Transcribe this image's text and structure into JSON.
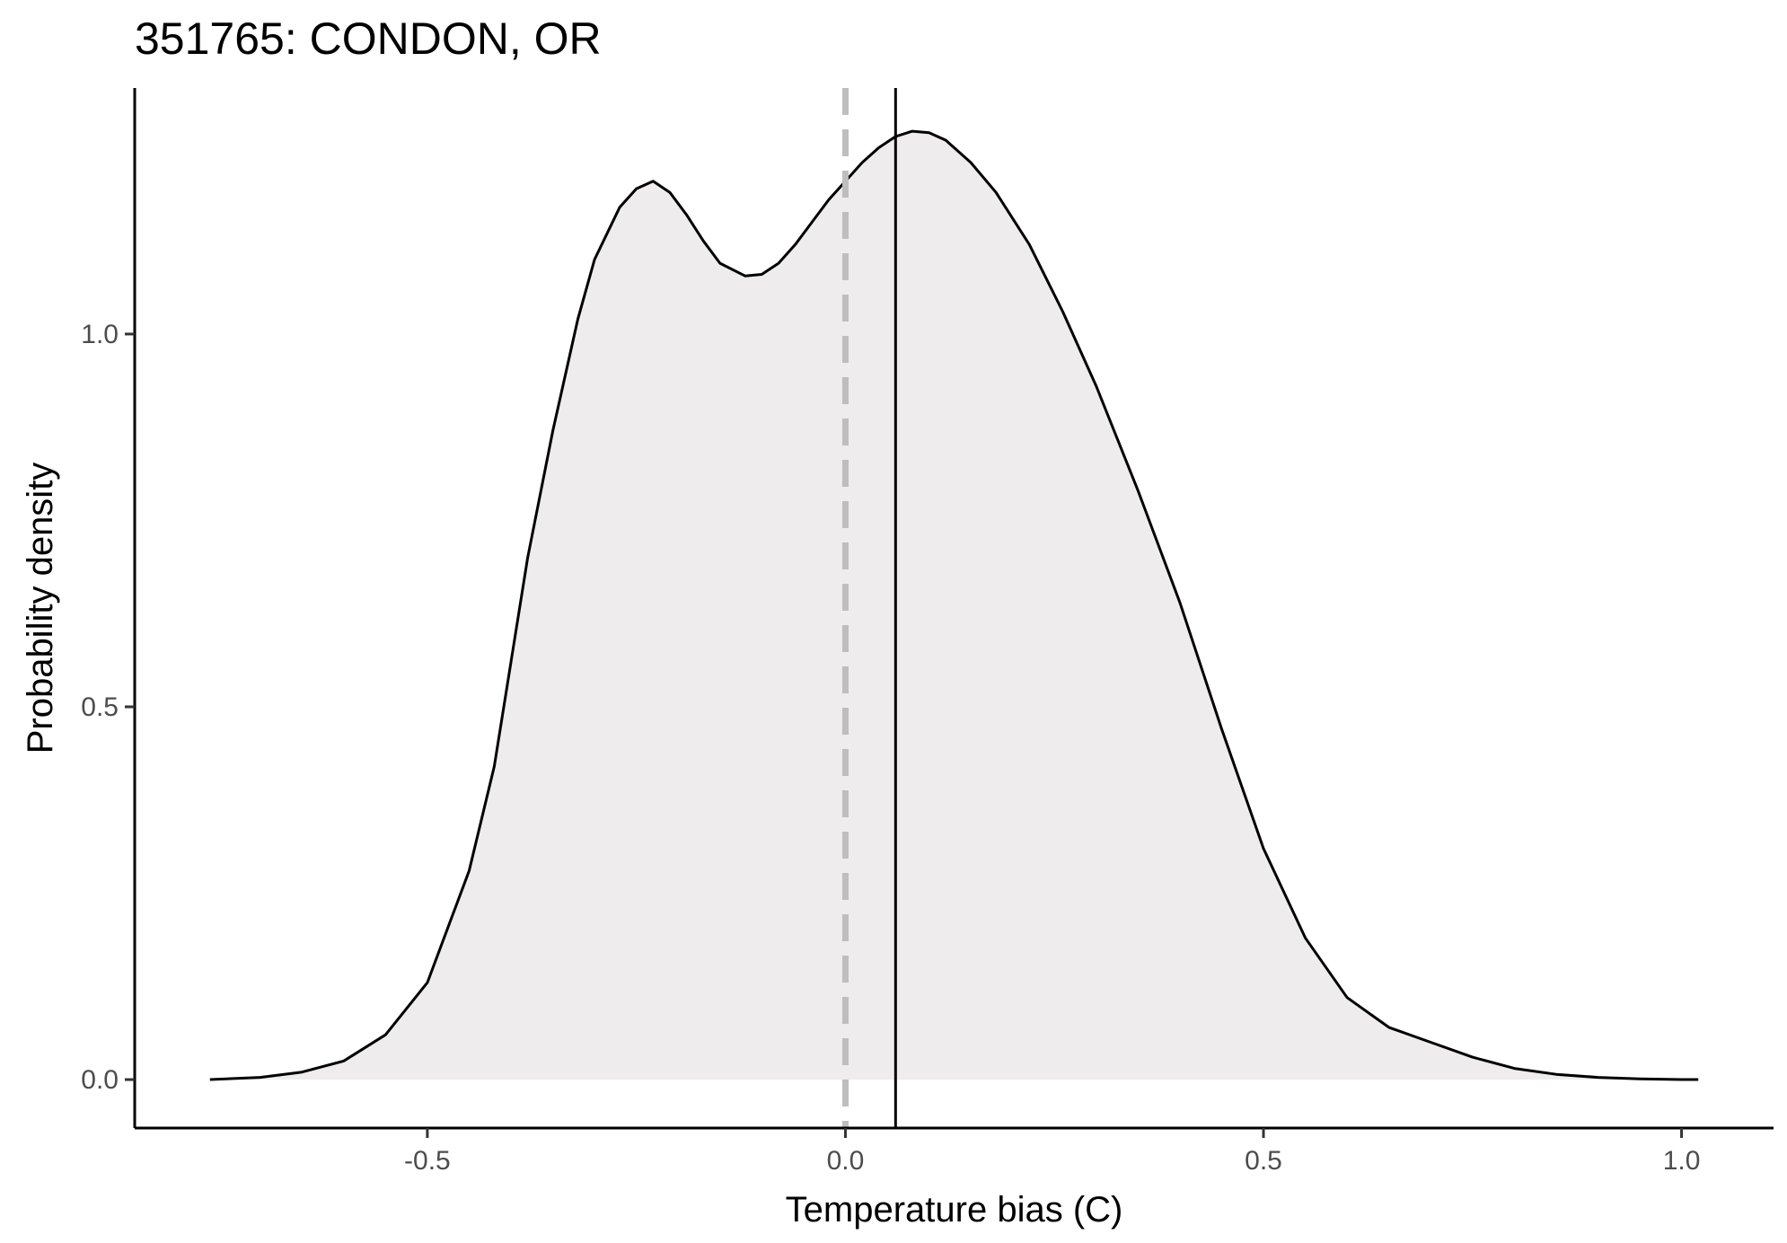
{
  "chart_data": {
    "type": "area",
    "title": "351765: CONDON, OR",
    "xlabel": "Temperature bias (C)",
    "ylabel": "Probability density",
    "xlim": [
      -0.85,
      1.11
    ],
    "ylim": [
      -0.065,
      1.33
    ],
    "x_ticks": [
      -0.5,
      0.0,
      0.5,
      1.0
    ],
    "x_tick_labels": [
      "-0.5",
      "0.0",
      "0.5",
      "1.0"
    ],
    "y_ticks": [
      0.0,
      0.5,
      1.0
    ],
    "y_tick_labels": [
      "0.0",
      "0.5",
      "1.0"
    ],
    "grid": false,
    "fill_color": "#eeecec",
    "line_color": "#000000",
    "density": {
      "x": [
        -0.76,
        -0.7,
        -0.65,
        -0.6,
        -0.55,
        -0.5,
        -0.45,
        -0.42,
        -0.4,
        -0.38,
        -0.35,
        -0.32,
        -0.3,
        -0.27,
        -0.25,
        -0.23,
        -0.21,
        -0.19,
        -0.17,
        -0.15,
        -0.12,
        -0.1,
        -0.08,
        -0.06,
        -0.04,
        -0.02,
        0.0,
        0.02,
        0.04,
        0.06,
        0.08,
        0.1,
        0.12,
        0.15,
        0.18,
        0.22,
        0.26,
        0.3,
        0.35,
        0.4,
        0.45,
        0.5,
        0.55,
        0.6,
        0.65,
        0.7,
        0.75,
        0.8,
        0.85,
        0.9,
        0.95,
        1.0,
        1.02
      ],
      "y": [
        0.0,
        0.003,
        0.01,
        0.025,
        0.06,
        0.13,
        0.28,
        0.42,
        0.56,
        0.7,
        0.87,
        1.02,
        1.1,
        1.17,
        1.195,
        1.205,
        1.19,
        1.16,
        1.125,
        1.095,
        1.078,
        1.08,
        1.095,
        1.12,
        1.15,
        1.18,
        1.205,
        1.23,
        1.25,
        1.265,
        1.272,
        1.27,
        1.26,
        1.23,
        1.19,
        1.12,
        1.03,
        0.93,
        0.79,
        0.64,
        0.47,
        0.31,
        0.19,
        0.11,
        0.07,
        0.05,
        0.03,
        0.015,
        0.007,
        0.003,
        0.001,
        0.0,
        0.0
      ]
    },
    "vlines": [
      {
        "name": "zero-reference",
        "x": 0.0,
        "style": "dashed",
        "color": "#bebebe"
      },
      {
        "name": "mean-bias",
        "x": 0.06,
        "style": "solid",
        "color": "#000000"
      }
    ]
  }
}
